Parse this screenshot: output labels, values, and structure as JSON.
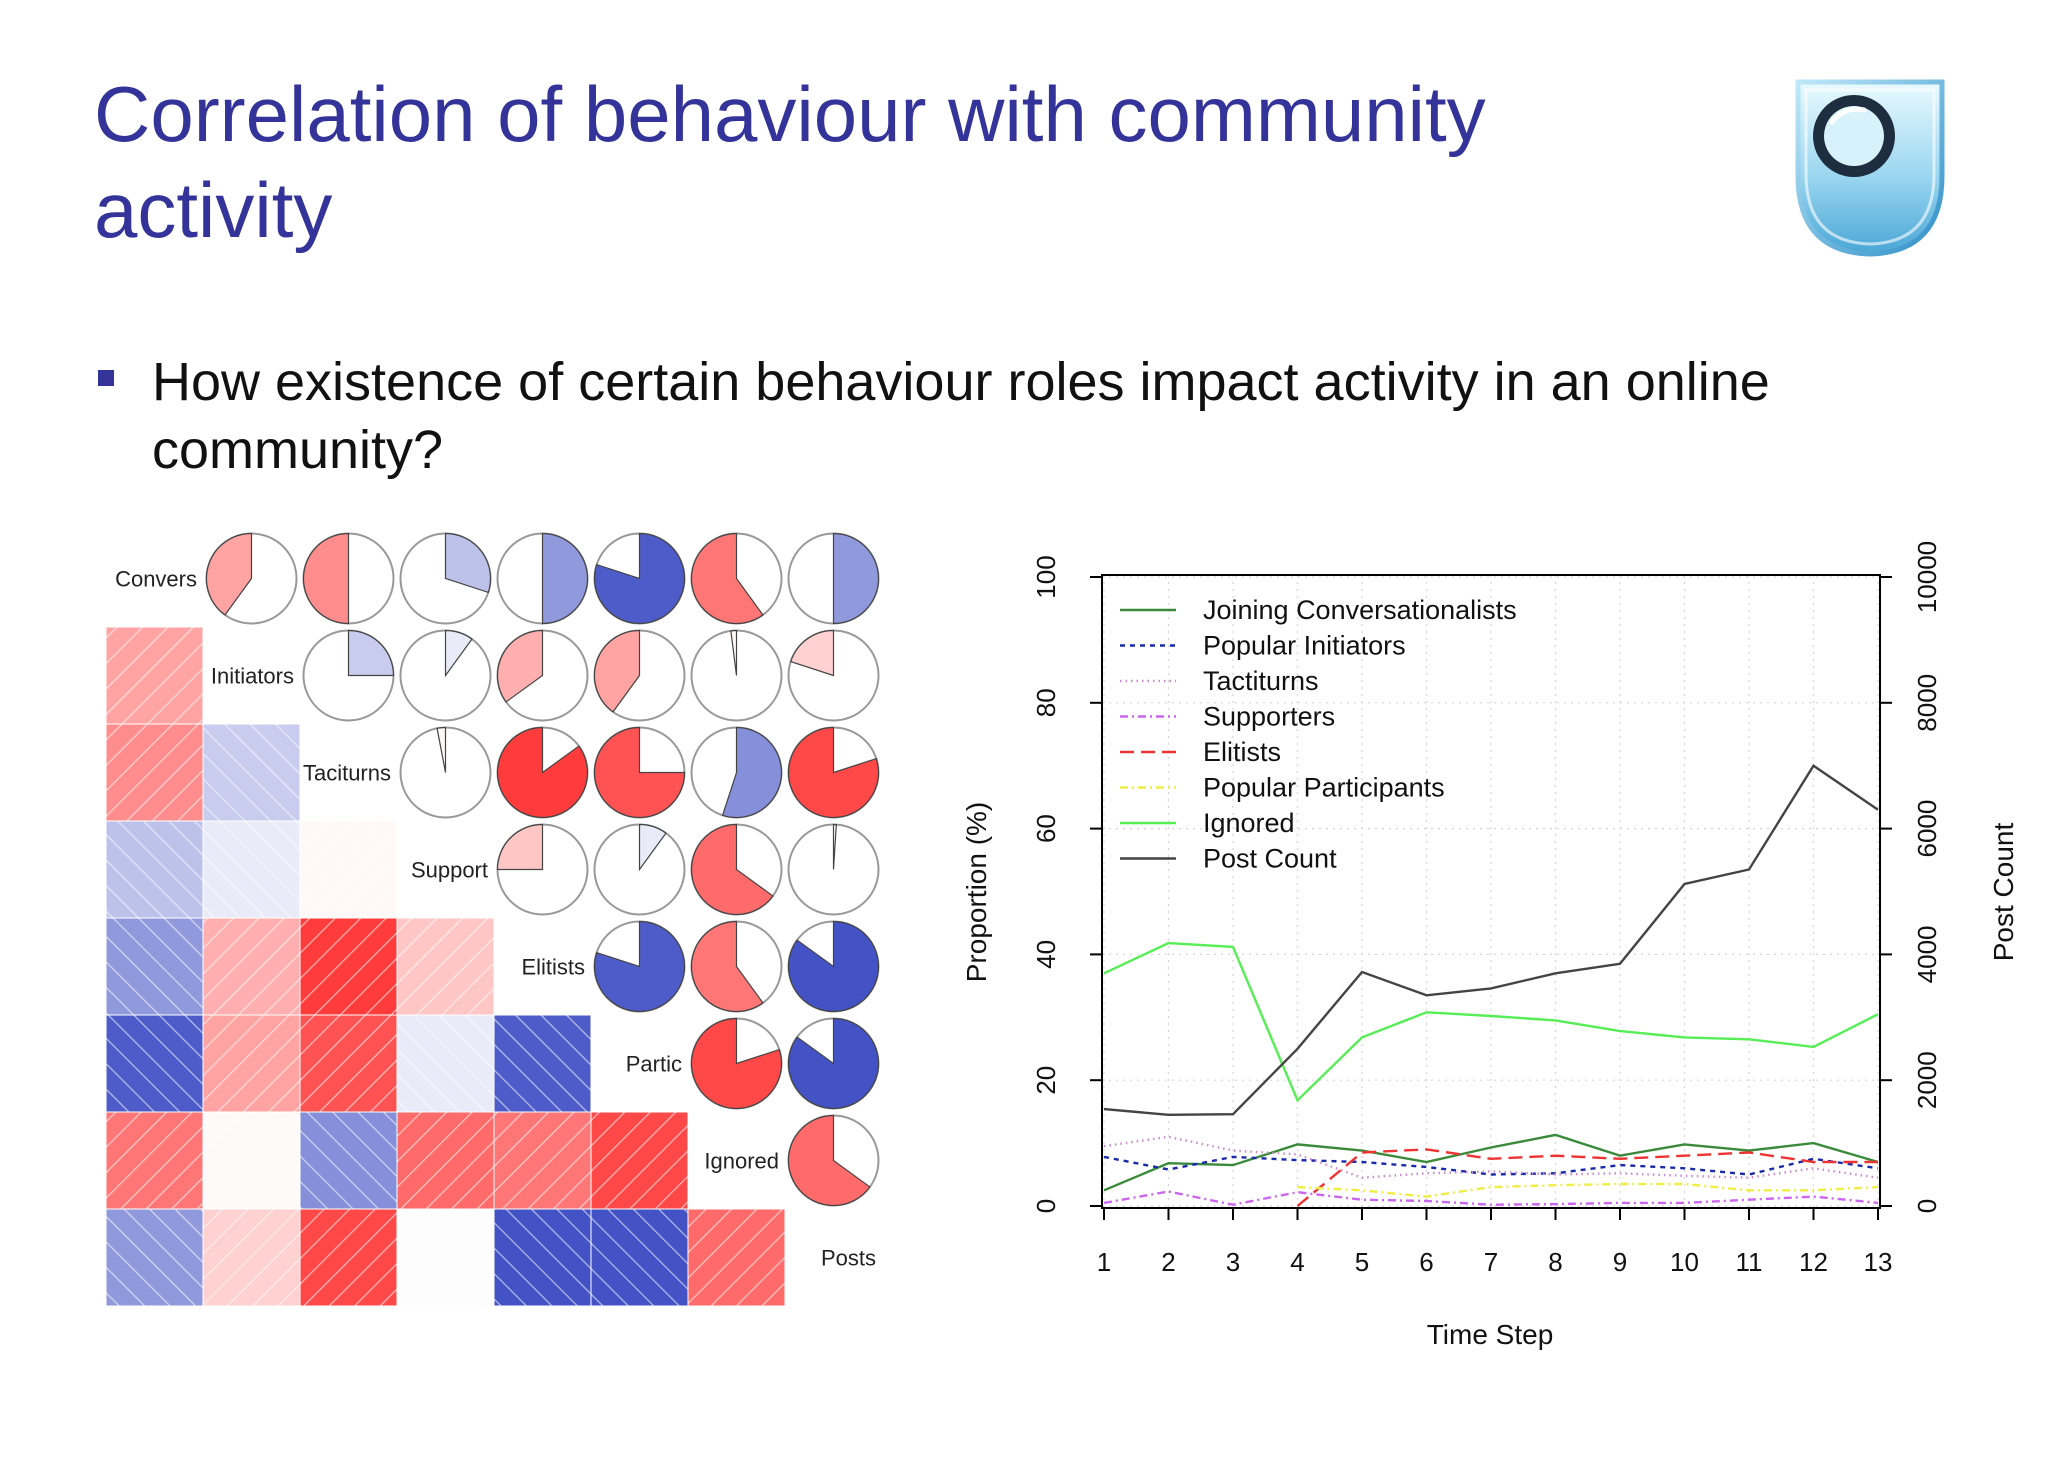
{
  "slide": {
    "title": "Correlation of behaviour with community activity",
    "bullet": "How existence of certain behaviour roles impact activity in an online community?"
  },
  "logo": {
    "icon": "open-university-shield-icon"
  },
  "chart_data": [
    {
      "type": "heatmap",
      "variables": [
        "Convers",
        "Initiators",
        "Taciturns",
        "Support",
        "Elitists",
        "Partic",
        "Ignored",
        "Posts"
      ],
      "encoding": "upper triangle pies and lower triangle hatched squares show the same correlation; blue = positive, red = negative; pie fill = |r|",
      "colors": {
        "positive": "#2233bb",
        "negative": "#ff1a1a"
      },
      "matrix": [
        [
          1,
          -0.4,
          -0.5,
          0.3,
          0.5,
          0.8,
          -0.6,
          0.5
        ],
        [
          -0.4,
          1,
          0.25,
          0.1,
          -0.35,
          -0.4,
          -0.02,
          -0.2
        ],
        [
          -0.5,
          0.25,
          1,
          -0.03,
          -0.85,
          -0.75,
          0.55,
          -0.8
        ],
        [
          0.3,
          0.1,
          -0.03,
          1,
          -0.25,
          0.1,
          -0.65,
          0.01
        ],
        [
          0.5,
          -0.35,
          -0.85,
          -0.25,
          1,
          0.8,
          -0.6,
          0.85
        ],
        [
          0.8,
          -0.4,
          -0.75,
          0.1,
          0.8,
          1,
          -0.8,
          0.85
        ],
        [
          -0.6,
          -0.02,
          0.55,
          -0.65,
          -0.6,
          -0.8,
          1,
          -0.65
        ],
        [
          0.5,
          -0.2,
          -0.8,
          0.01,
          0.85,
          0.85,
          -0.65,
          1
        ]
      ]
    },
    {
      "type": "line",
      "x": [
        1,
        2,
        3,
        4,
        5,
        6,
        7,
        8,
        9,
        10,
        11,
        12,
        13
      ],
      "xlabel": "Time Step",
      "ylabel": "Proportion (%)",
      "ylabel_right": "Post Count",
      "ylim": [
        0,
        100
      ],
      "ylim_right": [
        0,
        10000
      ],
      "yticks": [
        0,
        20,
        40,
        60,
        80,
        100
      ],
      "yticks_right": [
        0,
        2000,
        4000,
        6000,
        8000,
        10000
      ],
      "grid": true,
      "legend_position": "top-left",
      "series": [
        {
          "name": "Joining Conversationalists",
          "color": "#3a8a3a",
          "dash": "solid",
          "axis": "left",
          "values": [
            2.5,
            6.8,
            6.5,
            9.8,
            8.8,
            7.0,
            9.3,
            11.3,
            8.0,
            9.8,
            8.8,
            10.0,
            7.0
          ]
        },
        {
          "name": "Popular Initiators",
          "color": "#1a2aaa",
          "dash": "5,5",
          "axis": "left",
          "values": [
            7.8,
            5.8,
            7.8,
            7.3,
            7.0,
            6.2,
            5.0,
            5.2,
            6.5,
            6.0,
            5.0,
            7.5,
            6.0
          ]
        },
        {
          "name": "Tactiturns",
          "color": "#cc88cc",
          "dash": "1.5,4",
          "axis": "left",
          "values": [
            9.5,
            11.0,
            8.8,
            8.2,
            4.5,
            5.2,
            5.5,
            5.0,
            5.2,
            4.8,
            4.5,
            6.0,
            4.5
          ]
        },
        {
          "name": "Supporters",
          "color": "#cc66ee",
          "dash": "8,4,2,4",
          "axis": "left",
          "values": [
            0.5,
            2.3,
            0.2,
            2.2,
            1.0,
            0.8,
            0.2,
            0.3,
            0.5,
            0.5,
            1.0,
            1.5,
            0.5
          ]
        },
        {
          "name": "Elitists",
          "color": "#ee3333",
          "dash": "14,7",
          "axis": "left",
          "values": [
            null,
            null,
            null,
            0,
            8.5,
            9.0,
            7.5,
            8.0,
            7.5,
            8.0,
            8.5,
            7.0,
            7.0
          ]
        },
        {
          "name": "Popular Participants",
          "color": "#eeee44",
          "dash": "8,4,2,4",
          "axis": "left",
          "values": [
            null,
            null,
            null,
            3.0,
            2.5,
            1.5,
            3.0,
            3.3,
            3.5,
            3.5,
            2.5,
            2.5,
            3.0
          ]
        },
        {
          "name": "Ignored",
          "color": "#55ee55",
          "dash": "solid",
          "axis": "left",
          "values": [
            37,
            41.8,
            41.2,
            16.8,
            26.8,
            30.8,
            30.2,
            29.5,
            27.8,
            26.8,
            26.5,
            25.3,
            30.5
          ]
        },
        {
          "name": "Post Count",
          "color": "#444444",
          "dash": "solid",
          "axis": "right",
          "values": [
            1540,
            1450,
            1460,
            2500,
            3720,
            3350,
            3460,
            3700,
            3850,
            5120,
            5350,
            7000,
            6300
          ]
        }
      ]
    }
  ]
}
